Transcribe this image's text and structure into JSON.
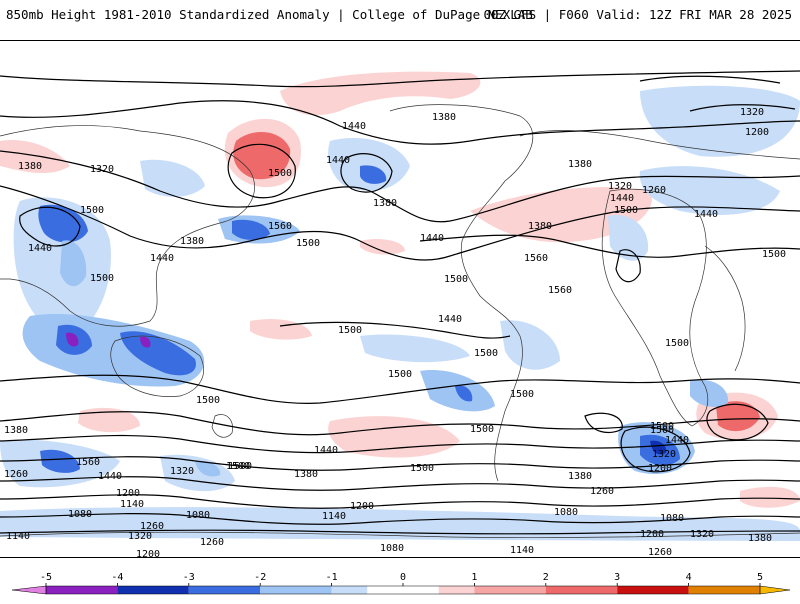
{
  "header": {
    "title": "850mb Height 1981-2010 Standardized Anomaly | College of DuPage NEXLAB",
    "valid": "00Z GFS | F060 Valid: 12Z FRI MAR 28 2025"
  },
  "colorbar": {
    "ticks": [
      "-5",
      "-4",
      "-3",
      "-2",
      "-1",
      "0",
      "1",
      "2",
      "3",
      "4",
      "5"
    ],
    "colors": {
      "neg5": "#e080e0",
      "neg4": "#8a20c0",
      "neg3": "#1030b0",
      "neg2": "#3a6ee0",
      "neg1": "#9ec4f4",
      "neg05": "#c8ddf8",
      "zero": "#ffffff",
      "pos05": "#fbd3d3",
      "pos1": "#f6a5a5",
      "pos2": "#ee6a6a",
      "pos3": "#c81010",
      "pos4": "#e08000",
      "pos5": "#f8b800"
    }
  },
  "contour_labels": [
    "1380",
    "1440",
    "1320",
    "1200",
    "1380",
    "1320",
    "1500",
    "1440",
    "1380",
    "1440",
    "1500",
    "1560",
    "1440",
    "1380",
    "1500",
    "1440",
    "1500",
    "1500",
    "1380",
    "1440",
    "1320",
    "1260",
    "1440",
    "1500",
    "1380",
    "1560",
    "1560",
    "1500",
    "1440",
    "1500",
    "1500",
    "1500",
    "1500",
    "1500",
    "1500",
    "1500",
    "1500",
    "1500",
    "1380",
    "1560",
    "1440",
    "1320",
    "1500",
    "1440",
    "1380",
    "1500",
    "1440",
    "1500",
    "1320",
    "1200",
    "1380",
    "1260",
    "1260",
    "1200",
    "1140",
    "1080",
    "1260",
    "1320",
    "1200",
    "1140",
    "1260",
    "1200",
    "1140",
    "1080",
    "1080",
    "1140",
    "1200",
    "1080",
    "1320",
    "1380",
    "1260",
    "1140",
    "1080"
  ]
}
